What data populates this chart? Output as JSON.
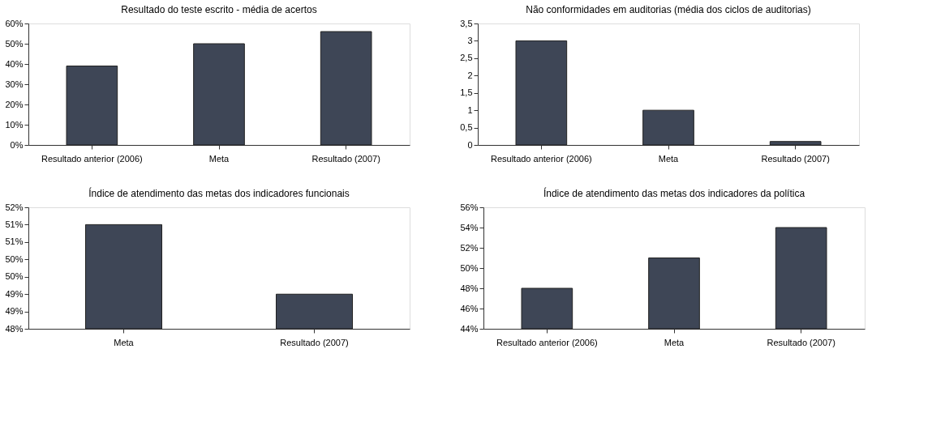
{
  "chart_data": [
    {
      "type": "bar",
      "title": "Resultado do teste escrito - média de acertos",
      "categories": [
        "Resultado anterior (2006)",
        "Meta",
        "Resultado (2007)"
      ],
      "values": [
        39,
        50,
        56
      ],
      "color": "#3e4656",
      "ylim": [
        0,
        60
      ],
      "yticks": [
        {
          "value": 0,
          "label": "0%"
        },
        {
          "value": 10,
          "label": "10%"
        },
        {
          "value": 20,
          "label": "20%"
        },
        {
          "value": 30,
          "label": "30%"
        },
        {
          "value": 40,
          "label": "40%"
        },
        {
          "value": 50,
          "label": "50%"
        },
        {
          "value": 60,
          "label": "60%"
        }
      ],
      "grid": false
    },
    {
      "type": "bar",
      "title": "Não conformidades em auditorias (média dos ciclos de auditorias)",
      "categories": [
        "Resultado anterior (2006)",
        "Meta",
        "Resultado (2007)"
      ],
      "values": [
        3,
        1,
        0.1
      ],
      "color": "#3e4656",
      "ylim": [
        0,
        3.5
      ],
      "yticks": [
        0,
        {
          "value": 0.5,
          "label": "0,5"
        },
        1,
        {
          "value": 1.5,
          "label": "1,5"
        },
        2,
        {
          "value": 2.5,
          "label": "2,5"
        },
        3,
        {
          "value": 3.5,
          "label": "3,5"
        }
      ],
      "grid": false
    },
    {
      "type": "bar",
      "title": "Índice de atendimento das metas dos indicadores funcionais",
      "categories": [
        "Meta",
        "Resultado (2007)"
      ],
      "values": [
        51.43,
        49.14
      ],
      "color": "#3e4656",
      "ylim": [
        48,
        52
      ],
      "yticks": [
        {
          "value": 48,
          "label": "48%"
        },
        {
          "value": 48.57,
          "label": "49%"
        },
        {
          "value": 49.14,
          "label": "49%"
        },
        {
          "value": 49.71,
          "label": "50%"
        },
        {
          "value": 50.29,
          "label": "50%"
        },
        {
          "value": 50.86,
          "label": "51%"
        },
        {
          "value": 51.43,
          "label": "51%"
        },
        {
          "value": 52,
          "label": "52%"
        }
      ],
      "grid": false
    },
    {
      "type": "bar",
      "title": "Índice de atendimento das metas dos indicadores da política",
      "categories": [
        "Resultado anterior (2006)",
        "Meta",
        "Resultado (2007)"
      ],
      "values": [
        48,
        51,
        54
      ],
      "color": "#3e4656",
      "ylim": [
        44,
        56
      ],
      "yticks": [
        {
          "value": 44,
          "label": "44%"
        },
        {
          "value": 46,
          "label": "46%"
        },
        {
          "value": 48,
          "label": "48%"
        },
        {
          "value": 50,
          "label": "50%"
        },
        {
          "value": 52,
          "label": "52%"
        },
        {
          "value": 54,
          "label": "54%"
        },
        {
          "value": 56,
          "label": "56%"
        }
      ],
      "grid": false
    }
  ]
}
